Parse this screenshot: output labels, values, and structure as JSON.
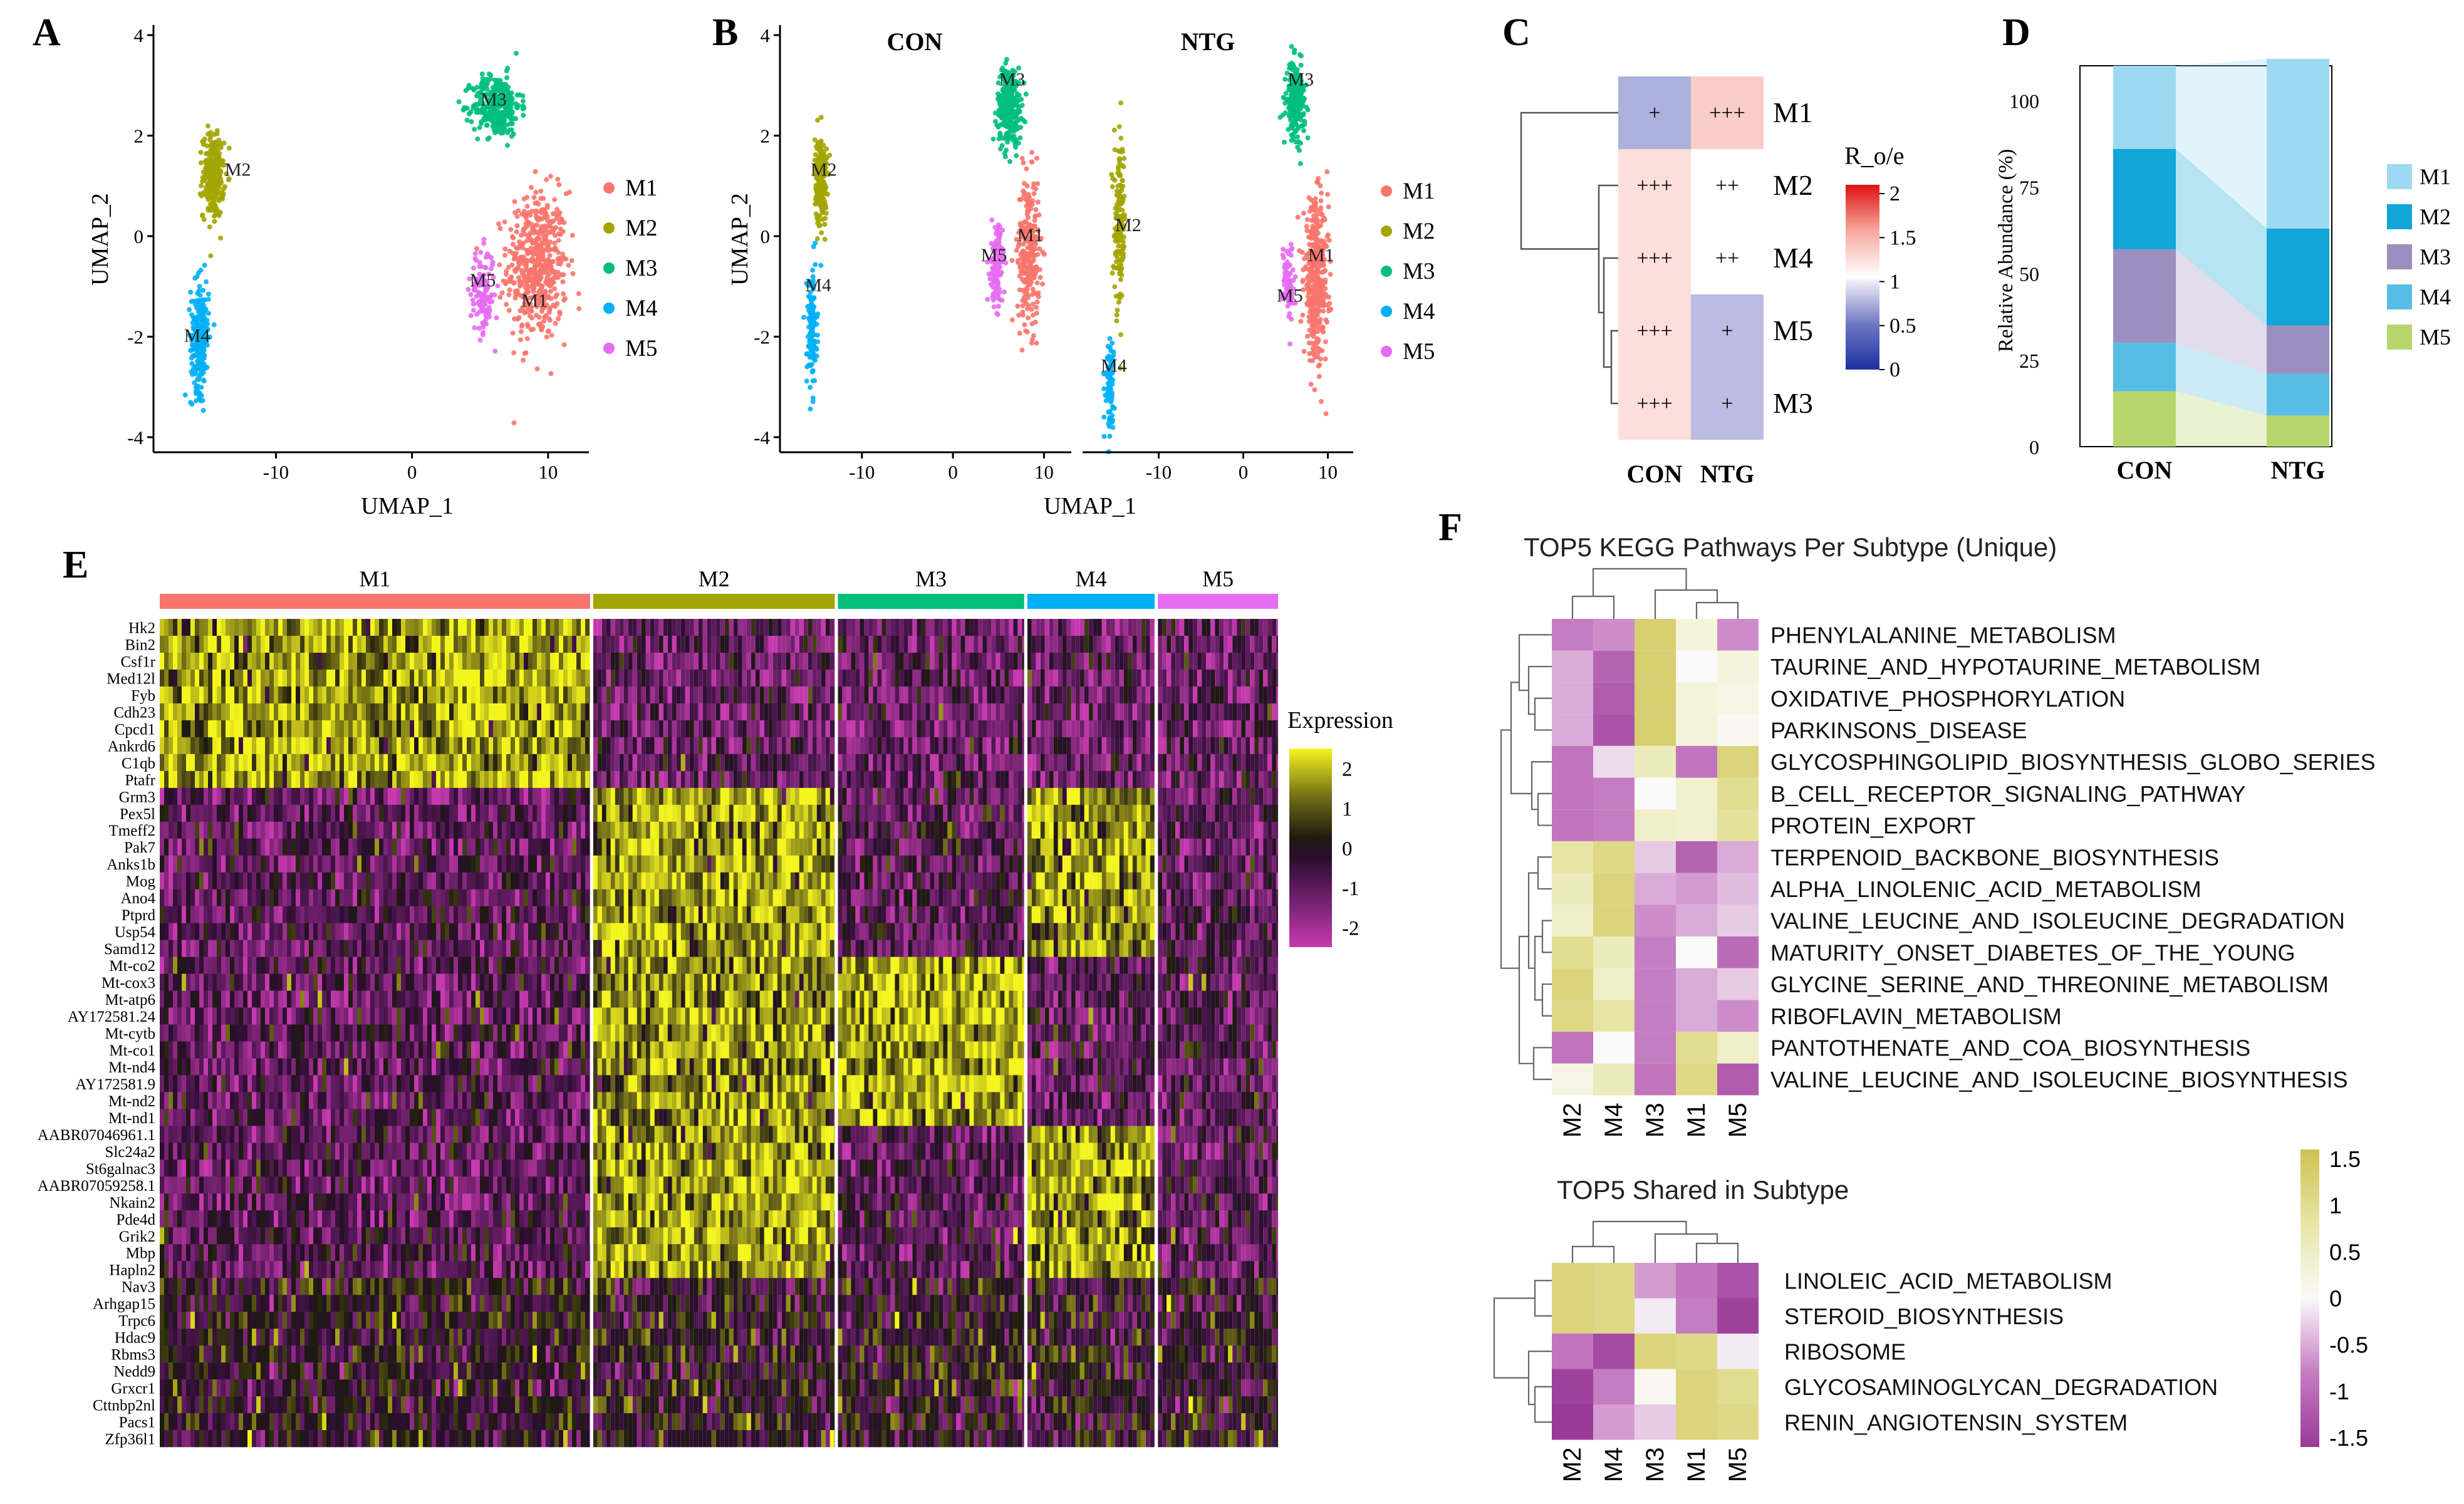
{
  "colors": {
    "M1": "#F8766D",
    "M2": "#A3A500",
    "M3": "#00BF7D",
    "M4": "#00B0F6",
    "M5": "#E76BF3",
    "ab_M1": "#9ED9F2",
    "ab_M2": "#11A5D8",
    "ab_M3": "#9B8FC0",
    "ab_M4": "#57BDE5",
    "ab_M5": "#B6D66D"
  },
  "panels": {
    "A": "A",
    "B": "B",
    "C": "C",
    "D": "D",
    "E": "E",
    "F": "F"
  },
  "chart_data": [
    {
      "id": "A",
      "type": "scatter",
      "xlabel": "UMAP_1",
      "ylabel": "UMAP_2",
      "xlim": [
        -19,
        13
      ],
      "ylim": [
        -4.3,
        4.2
      ],
      "x_ticks": [
        "-10",
        "0",
        "10"
      ],
      "x_tick_values": [
        -10,
        0,
        10
      ],
      "y_ticks": [
        "-4",
        "-2",
        "0",
        "2",
        "4"
      ],
      "y_tick_values": [
        -4,
        -2,
        0,
        2,
        4
      ],
      "legend": [
        "M1",
        "M2",
        "M3",
        "M4",
        "M5"
      ],
      "clusters": [
        {
          "name": "M1",
          "label": "M1",
          "cx": 9.2,
          "cy": -0.6,
          "sx": 2.0,
          "sy": 1.35,
          "n": 520,
          "lx": 9.0,
          "ly": -1.4
        },
        {
          "name": "M2",
          "label": "M2",
          "cx": -14.6,
          "cy": 1.2,
          "sx": 0.7,
          "sy": 0.75,
          "n": 260,
          "lx": -12.8,
          "ly": 1.2
        },
        {
          "name": "M3",
          "label": "M3",
          "cx": 6.2,
          "cy": 2.6,
          "sx": 1.6,
          "sy": 0.55,
          "n": 330,
          "lx": 6.0,
          "ly": 2.6
        },
        {
          "name": "M4",
          "label": "M4",
          "cx": -15.6,
          "cy": -2.0,
          "sx": 0.6,
          "sy": 1.0,
          "n": 240,
          "lx": -15.8,
          "ly": -2.1
        },
        {
          "name": "M5",
          "label": "M5",
          "cx": 5.2,
          "cy": -1.1,
          "sx": 0.8,
          "sy": 0.75,
          "n": 130,
          "lx": 5.2,
          "ly": -1.0
        }
      ]
    },
    {
      "id": "B",
      "type": "scatter",
      "xlabel": "UMAP_1",
      "ylabel": "UMAP_2",
      "facets": [
        "CON",
        "NTG"
      ],
      "xlim": [
        -19,
        13
      ],
      "ylim": [
        -4.3,
        4.2
      ],
      "x_ticks": [
        "-10",
        "0",
        "10"
      ],
      "x_tick_values": [
        -10,
        0,
        10
      ],
      "y_ticks": [
        "-4",
        "-2",
        "0",
        "2",
        "4"
      ],
      "y_tick_values": [
        -4,
        -2,
        0,
        2,
        4
      ],
      "legend": [
        "M1",
        "M2",
        "M3",
        "M4",
        "M5"
      ],
      "facet_clusters": [
        [
          {
            "name": "M1",
            "label": "M1",
            "cx": 8.3,
            "cy": -0.3,
            "sx": 1.1,
            "sy": 1.35,
            "n": 260,
            "lx": 8.5,
            "ly": -0.1
          },
          {
            "name": "M2",
            "label": "M2",
            "cx": -14.5,
            "cy": 1.1,
            "sx": 0.6,
            "sy": 0.8,
            "n": 220,
            "lx": -14.2,
            "ly": 1.2
          },
          {
            "name": "M3",
            "label": "M3",
            "cx": 6.2,
            "cy": 2.6,
            "sx": 1.2,
            "sy": 0.7,
            "n": 320,
            "lx": 6.5,
            "ly": 3.0
          },
          {
            "name": "M4",
            "label": "M4",
            "cx": -15.5,
            "cy": -1.9,
            "sx": 0.5,
            "sy": 1.1,
            "n": 140,
            "lx": -14.8,
            "ly": -1.1
          },
          {
            "name": "M5",
            "label": "M5",
            "cx": 4.8,
            "cy": -0.6,
            "sx": 0.6,
            "sy": 0.7,
            "n": 150,
            "lx": 4.5,
            "ly": -0.5
          }
        ],
        [
          {
            "name": "M1",
            "label": "M1",
            "cx": 8.6,
            "cy": -0.9,
            "sx": 1.3,
            "sy": 1.4,
            "n": 400,
            "lx": 9.2,
            "ly": -0.5
          },
          {
            "name": "M2",
            "label": "M2",
            "cx": -14.6,
            "cy": 0.2,
            "sx": 0.6,
            "sy": 1.5,
            "n": 150,
            "lx": -13.6,
            "ly": 0.1
          },
          {
            "name": "M3",
            "label": "M3",
            "cx": 6.2,
            "cy": 2.7,
            "sx": 1.0,
            "sy": 0.65,
            "n": 240,
            "lx": 6.8,
            "ly": 3.0
          },
          {
            "name": "M4",
            "label": "M4",
            "cx": -15.8,
            "cy": -2.9,
            "sx": 0.5,
            "sy": 0.8,
            "n": 80,
            "lx": -15.3,
            "ly": -2.7
          },
          {
            "name": "M5",
            "label": "M5",
            "cx": 5.3,
            "cy": -0.9,
            "sx": 0.6,
            "sy": 0.7,
            "n": 80,
            "lx": 5.5,
            "ly": -1.3
          }
        ]
      ]
    },
    {
      "id": "C",
      "type": "heatmap",
      "title": "R_o/e",
      "rows": [
        "M1",
        "M2",
        "M4",
        "M5",
        "M3"
      ],
      "columns": [
        "CON",
        "NTG"
      ],
      "values": [
        [
          0.75,
          1.35
        ],
        [
          1.25,
          1.05
        ],
        [
          1.25,
          1.05
        ],
        [
          1.25,
          0.8
        ],
        [
          1.25,
          0.8
        ]
      ],
      "annotations": [
        [
          "+",
          "+++"
        ],
        [
          "+++",
          "++"
        ],
        [
          "+++",
          "++"
        ],
        [
          "+++",
          "+"
        ],
        [
          "+++",
          "+"
        ]
      ],
      "colorbar_ticks": [
        "2",
        "1.5",
        "1",
        "0.5",
        "0"
      ],
      "colorbar_values": [
        2,
        1.5,
        1,
        0.5,
        0
      ],
      "range": [
        0,
        2.1
      ]
    },
    {
      "id": "D",
      "type": "bar",
      "stacked": true,
      "ylabel": "Relative Abundance (%)",
      "categories": [
        "CON",
        "NTG"
      ],
      "series_order_bottom_to_top": [
        "M5",
        "M4",
        "M3",
        "M2",
        "M1"
      ],
      "series": [
        {
          "name": "M1",
          "values": [
            24,
            49
          ]
        },
        {
          "name": "M2",
          "values": [
            29,
            28
          ]
        },
        {
          "name": "M3",
          "values": [
            27,
            14
          ]
        },
        {
          "name": "M4",
          "values": [
            14,
            12
          ]
        },
        {
          "name": "M5",
          "values": [
            16,
            9
          ]
        }
      ],
      "y_ticks": [
        "0",
        "25",
        "50",
        "75",
        "100"
      ],
      "y_tick_values": [
        0,
        25,
        50,
        75,
        100
      ],
      "ylim": [
        0,
        110
      ]
    },
    {
      "id": "E",
      "type": "heatmap",
      "legend_title": "Expression",
      "groups": [
        {
          "name": "M1",
          "label": "M1",
          "frac": 0.358
        },
        {
          "name": "M2",
          "label": "M2",
          "frac": 0.201
        },
        {
          "name": "M3",
          "label": "M3",
          "frac": 0.155
        },
        {
          "name": "M4",
          "label": "M4",
          "frac": 0.106
        },
        {
          "name": "M5",
          "label": "M5",
          "frac": 0.1
        }
      ],
      "gene_blocks": [
        {
          "high": "M1",
          "genes": [
            "Hk2",
            "Bin2",
            "Csf1r",
            "Med12l",
            "Fyb",
            "Cdh23",
            "Cpcd1",
            "Ankrd6",
            "C1qb",
            "Ptafr"
          ]
        },
        {
          "high": "M2",
          "genes": [
            "Grm3",
            "Pex5l",
            "Tmeff2",
            "Pak7",
            "Anks1b",
            "Mog",
            "Ano4",
            "Ptprd",
            "Usp54",
            "Samd12"
          ]
        },
        {
          "high": "M3",
          "genes": [
            "Mt-co2",
            "Mt-cox3",
            "Mt-atp6",
            "AY172581.24",
            "Mt-cytb",
            "Mt-co1",
            "Mt-nd4",
            "AY172581.9",
            "Mt-nd2",
            "Mt-nd1"
          ]
        },
        {
          "high": "M4",
          "genes": [
            "AABR07046961.1",
            "Slc24a2",
            "St6galnac3",
            "AABR07059258.1",
            "Nkain2",
            "Pde4d",
            "Grik2",
            "Mbp",
            "Hapln2"
          ]
        },
        {
          "high": "M5",
          "genes": [
            "Nav3",
            "Arhgap15",
            "Trpc6",
            "Hdac9",
            "Rbms3",
            "Nedd9",
            "Grxcr1",
            "Cttnbp2nl",
            "Pacs1",
            "Zfp36l1"
          ]
        }
      ],
      "colorbar_ticks": [
        "2",
        "1",
        "0",
        "-1",
        "-2"
      ],
      "colorbar_values": [
        2,
        1,
        0,
        -1,
        -2
      ]
    },
    {
      "id": "F1",
      "type": "heatmap",
      "title": "TOP5 KEGG Pathways Per Subtype (Unique)",
      "columns": [
        "M2",
        "M4",
        "M3",
        "M1",
        "M5"
      ],
      "rows": [
        "PHENYLALANINE_METABOLISM",
        "TAURINE_AND_HYPOTAURINE_METABOLISM",
        "OXIDATIVE_PHOSPHORYLATION",
        "PARKINSONS_DISEASE",
        "GLYCOSPHINGOLIPID_BIOSYNTHESIS_GLOBO_SERIES",
        "B_CELL_RECEPTOR_SIGNALING_PATHWAY",
        "PROTEIN_EXPORT",
        "TERPENOID_BACKBONE_BIOSYNTHESIS",
        "ALPHA_LINOLENIC_ACID_METABOLISM",
        "VALINE_LEUCINE_AND_ISOLEUCINE_DEGRADATION",
        "MATURITY_ONSET_DIABETES_OF_THE_YOUNG",
        "GLYCINE_SERINE_AND_THREONINE_METABOLISM",
        "RIBOFLAVIN_METABOLISM",
        "PANTOTHENATE_AND_COA_BIOSYNTHESIS",
        "VALINE_LEUCINE_AND_ISOLEUCINE_BIOSYNTHESIS"
      ],
      "values": [
        [
          -0.8,
          -0.7,
          1.3,
          0.3,
          -0.7
        ],
        [
          -0.5,
          -1.1,
          1.3,
          0.0,
          0.3
        ],
        [
          -0.5,
          -1.2,
          1.3,
          0.3,
          0.2
        ],
        [
          -0.5,
          -1.3,
          1.3,
          0.3,
          0.1
        ],
        [
          -0.9,
          -0.2,
          0.6,
          -0.9,
          1.2
        ],
        [
          -0.9,
          -0.8,
          0.0,
          0.4,
          1.0
        ],
        [
          -0.9,
          -0.8,
          0.5,
          0.4,
          0.9
        ],
        [
          0.8,
          1.1,
          -0.3,
          -1.1,
          -0.5
        ],
        [
          0.6,
          1.2,
          -0.5,
          -0.6,
          -0.4
        ],
        [
          0.5,
          1.2,
          -0.7,
          -0.5,
          -0.3
        ],
        [
          1.0,
          0.6,
          -0.8,
          0.0,
          -1.0
        ],
        [
          1.2,
          0.5,
          -0.8,
          -0.5,
          -0.3
        ],
        [
          1.1,
          0.8,
          -0.8,
          -0.5,
          -0.7
        ],
        [
          -0.9,
          0.0,
          -0.8,
          1.0,
          0.5
        ],
        [
          0.2,
          0.6,
          -0.9,
          1.1,
          -1.2
        ]
      ]
    },
    {
      "id": "F2",
      "type": "heatmap",
      "title": "TOP5 Shared in Subtype",
      "columns": [
        "M2",
        "M4",
        "M3",
        "M1",
        "M5"
      ],
      "rows": [
        "LINOLEIC_ACID_METABOLISM",
        "STEROID_BIOSYNTHESIS",
        "RIBOSOME",
        "GLYCOSAMINOGLYCAN_DEGRADATION",
        "RENIN_ANGIOTENSIN_SYSTEM"
      ],
      "values": [
        [
          1.2,
          1.1,
          -0.6,
          -0.9,
          -1.3
        ],
        [
          1.2,
          1.1,
          -0.1,
          -0.8,
          -1.5
        ],
        [
          -0.9,
          -1.4,
          1.2,
          1.1,
          -0.1
        ],
        [
          -1.5,
          -0.8,
          0.1,
          1.2,
          1.0
        ],
        [
          -1.6,
          -0.6,
          -0.3,
          1.2,
          1.1
        ]
      ],
      "colorbar_ticks": [
        "1.5",
        "1",
        "0.5",
        "0",
        "-0.5",
        "-1",
        "-1.5"
      ],
      "colorbar_values": [
        1.5,
        1,
        0.5,
        0,
        -0.5,
        -1,
        -1.5
      ]
    }
  ]
}
